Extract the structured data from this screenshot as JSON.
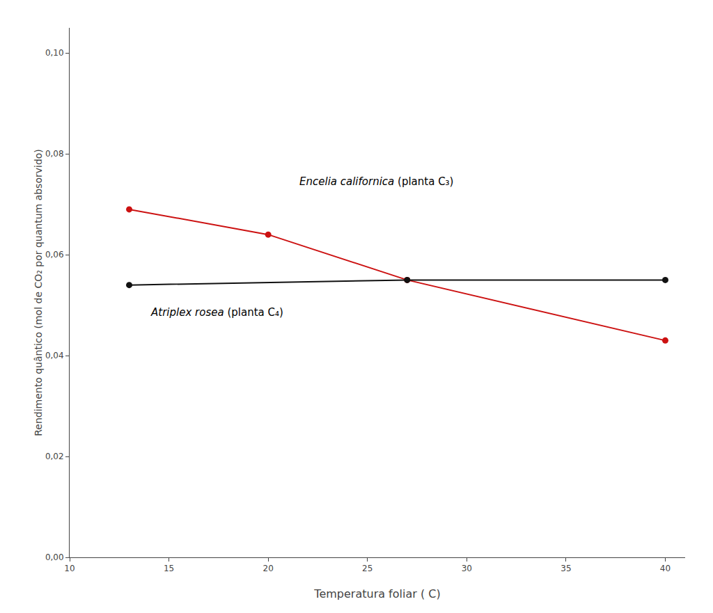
{
  "chart_data": {
    "type": "line",
    "xlabel": "Temperatura foliar ( C)",
    "ylabel": "Rendimento quântico (mol de CO₂ por quantum absorvido)",
    "series": [
      {
        "color": "#cc1111",
        "x": [
          13,
          20,
          27,
          40
        ],
        "values": [
          0.069,
          0.064,
          0.055,
          0.043
        ]
      },
      {
        "color": "#111111",
        "x": [
          13,
          27,
          40
        ],
        "values": [
          0.054,
          0.055,
          0.055
        ]
      }
    ],
    "annotations": [
      {
        "text": "Encelia californica (planta C₃)",
        "x": 21.5,
        "y": 0.073
      },
      {
        "text": "Atriplex rosea (planta C₄)",
        "x": 14.0,
        "y": 0.047
      }
    ],
    "xlim": [
      10,
      41
    ],
    "xticks": [
      10,
      15,
      20,
      25,
      30,
      35,
      40
    ],
    "ylim": [
      0.0,
      0.105
    ],
    "yticks": [
      {
        "value": 0.0,
        "label": "0,00"
      },
      {
        "value": 0.02,
        "label": "0,02"
      },
      {
        "value": 0.04,
        "label": "0,04"
      },
      {
        "value": 0.06,
        "label": "0,06"
      },
      {
        "value": 0.08,
        "label": "0,08"
      },
      {
        "value": 0.1,
        "label": "0,10"
      }
    ],
    "grid": false,
    "marker": "circle",
    "line_style": "solid"
  }
}
